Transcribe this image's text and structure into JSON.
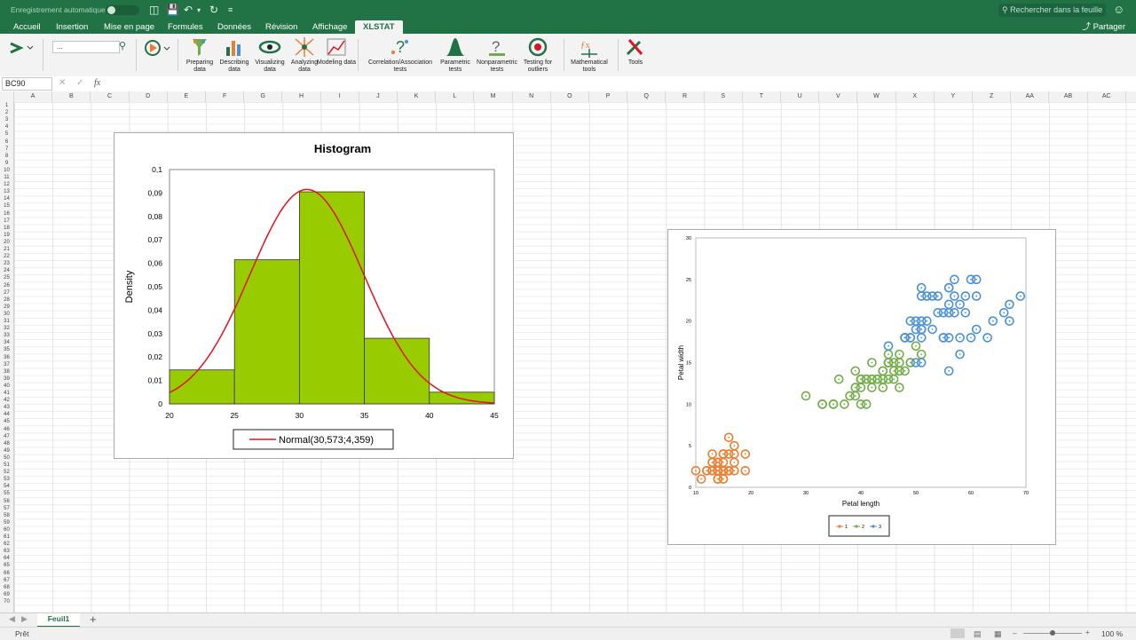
{
  "titlebar": {
    "autosave_label": "Enregistrement automatique",
    "search_placeholder": "Rechercher dans la feuille"
  },
  "tabs": [
    "Accueil",
    "Insertion",
    "Mise en page",
    "Formules",
    "Données",
    "Révision",
    "Affichage",
    "XLSTAT"
  ],
  "active_tab": "XLSTAT",
  "share_label": "Partager",
  "ribbon": {
    "search_value": "...",
    "tools": [
      {
        "label": "Preparing data",
        "icon": "preparing-data-icon"
      },
      {
        "label": "Describing data",
        "icon": "describing-data-icon"
      },
      {
        "label": "Visualizing data",
        "icon": "visualizing-data-icon"
      },
      {
        "label": "Analyzing data",
        "icon": "analyzing-data-icon"
      },
      {
        "label": "Modeling data",
        "icon": "modeling-data-icon"
      },
      {
        "label": "Correlation/Association tests",
        "icon": "correlation-icon"
      },
      {
        "label": "Parametric tests",
        "icon": "parametric-icon"
      },
      {
        "label": "Nonparametric tests",
        "icon": "nonparametric-icon"
      },
      {
        "label": "Testing for outliers",
        "icon": "outliers-icon"
      },
      {
        "label": "Mathematical tools",
        "icon": "math-tools-icon"
      },
      {
        "label": "Tools",
        "icon": "tools-icon"
      }
    ]
  },
  "formula_bar": {
    "name_box": "BC90",
    "fx_label": "fx",
    "value": ""
  },
  "columns": [
    "A",
    "B",
    "C",
    "D",
    "E",
    "F",
    "G",
    "H",
    "I",
    "J",
    "K",
    "L",
    "M",
    "N",
    "O",
    "P",
    "Q",
    "R",
    "S",
    "T",
    "U",
    "V",
    "W",
    "X",
    "Y",
    "Z",
    "AA",
    "AB",
    "AC"
  ],
  "row_count": 71,
  "sheet_tab": "Feuil1",
  "status_text": "Prêt",
  "zoom": "100 %",
  "colors": {
    "excel_green": "#217346",
    "bar_fill": "#99cc00",
    "curve": "#e0141e",
    "series1": "#ed7d31",
    "series2": "#70ad47",
    "series3": "#4a90d9"
  },
  "chart_data": [
    {
      "type": "bar",
      "title": "Histogram",
      "ylabel": "Density",
      "xlabel": "",
      "bins": [
        [
          20,
          25
        ],
        [
          25,
          30
        ],
        [
          30,
          35
        ],
        [
          35,
          40
        ],
        [
          40,
          45
        ]
      ],
      "values": [
        0.0145,
        0.0615,
        0.0905,
        0.028,
        0.005
      ],
      "xticks": [
        "20",
        "25",
        "30",
        "35",
        "40",
        "45"
      ],
      "yticks": [
        "0",
        "0,01",
        "0,02",
        "0,03",
        "0,04",
        "0,05",
        "0,06",
        "0,07",
        "0,08",
        "0,09",
        "0,1"
      ],
      "xlim": [
        20,
        45
      ],
      "ylim": [
        0,
        0.1
      ],
      "overlay": {
        "type": "line",
        "name": "Normal(30,573;4,359)",
        "mean": 30.573,
        "sd": 4.359
      },
      "legend_position": "bottom"
    },
    {
      "type": "scatter",
      "xlabel": "Petal length",
      "ylabel": "Petal width",
      "xlim": [
        10,
        70
      ],
      "ylim": [
        0,
        30
      ],
      "xticks": [
        "10",
        "20",
        "30",
        "40",
        "50",
        "60",
        "70"
      ],
      "yticks": [
        "0",
        "5",
        "10",
        "15",
        "20",
        "25",
        "30"
      ],
      "legend_position": "bottom",
      "series": [
        {
          "name": "1",
          "points": [
            [
              14,
              2
            ],
            [
              14,
              2
            ],
            [
              13,
              2
            ],
            [
              15,
              2
            ],
            [
              14,
              2
            ],
            [
              17,
              4
            ],
            [
              14,
              3
            ],
            [
              15,
              2
            ],
            [
              14,
              2
            ],
            [
              15,
              1
            ],
            [
              15,
              2
            ],
            [
              16,
              2
            ],
            [
              14,
              1
            ],
            [
              11,
              1
            ],
            [
              12,
              2
            ],
            [
              15,
              4
            ],
            [
              13,
              4
            ],
            [
              14,
              3
            ],
            [
              17,
              3
            ],
            [
              15,
              3
            ],
            [
              17,
              2
            ],
            [
              15,
              4
            ],
            [
              10,
              2
            ],
            [
              17,
              5
            ],
            [
              19,
              2
            ],
            [
              16,
              2
            ],
            [
              16,
              4
            ],
            [
              15,
              2
            ],
            [
              14,
              2
            ],
            [
              16,
              2
            ],
            [
              16,
              2
            ],
            [
              15,
              4
            ],
            [
              15,
              1
            ],
            [
              14,
              2
            ],
            [
              15,
              2
            ],
            [
              12,
              2
            ],
            [
              13,
              2
            ],
            [
              14,
              1
            ],
            [
              13,
              2
            ],
            [
              15,
              2
            ],
            [
              13,
              3
            ],
            [
              13,
              3
            ],
            [
              13,
              2
            ],
            [
              16,
              6
            ],
            [
              19,
              4
            ],
            [
              14,
              3
            ],
            [
              16,
              2
            ],
            [
              14,
              2
            ],
            [
              15,
              2
            ],
            [
              14,
              2
            ]
          ]
        },
        {
          "name": "2",
          "points": [
            [
              47,
              14
            ],
            [
              45,
              15
            ],
            [
              49,
              15
            ],
            [
              40,
              13
            ],
            [
              46,
              15
            ],
            [
              45,
              13
            ],
            [
              47,
              16
            ],
            [
              33,
              10
            ],
            [
              46,
              13
            ],
            [
              39,
              14
            ],
            [
              35,
              10
            ],
            [
              42,
              15
            ],
            [
              40,
              10
            ],
            [
              47,
              14
            ],
            [
              36,
              13
            ],
            [
              44,
              14
            ],
            [
              45,
              15
            ],
            [
              41,
              10
            ],
            [
              45,
              15
            ],
            [
              39,
              11
            ],
            [
              48,
              18
            ],
            [
              40,
              13
            ],
            [
              49,
              15
            ],
            [
              47,
              12
            ],
            [
              43,
              13
            ],
            [
              44,
              14
            ],
            [
              48,
              14
            ],
            [
              50,
              17
            ],
            [
              45,
              15
            ],
            [
              35,
              10
            ],
            [
              38,
              11
            ],
            [
              37,
              10
            ],
            [
              39,
              12
            ],
            [
              51,
              16
            ],
            [
              45,
              15
            ],
            [
              45,
              16
            ],
            [
              47,
              15
            ],
            [
              44,
              13
            ],
            [
              41,
              13
            ],
            [
              40,
              13
            ],
            [
              44,
              12
            ],
            [
              46,
              14
            ],
            [
              40,
              12
            ],
            [
              33,
              10
            ],
            [
              42,
              13
            ],
            [
              42,
              12
            ],
            [
              42,
              13
            ],
            [
              43,
              13
            ],
            [
              30,
              11
            ],
            [
              41,
              13
            ]
          ]
        },
        {
          "name": "3",
          "points": [
            [
              60,
              25
            ],
            [
              51,
              19
            ],
            [
              59,
              21
            ],
            [
              56,
              18
            ],
            [
              58,
              22
            ],
            [
              66,
              21
            ],
            [
              45,
              17
            ],
            [
              63,
              18
            ],
            [
              58,
              18
            ],
            [
              61,
              25
            ],
            [
              51,
              20
            ],
            [
              53,
              19
            ],
            [
              55,
              21
            ],
            [
              50,
              20
            ],
            [
              51,
              24
            ],
            [
              53,
              23
            ],
            [
              55,
              18
            ],
            [
              67,
              22
            ],
            [
              69,
              23
            ],
            [
              50,
              15
            ],
            [
              57,
              23
            ],
            [
              49,
              20
            ],
            [
              67,
              20
            ],
            [
              49,
              18
            ],
            [
              57,
              21
            ],
            [
              60,
              18
            ],
            [
              48,
              18
            ],
            [
              49,
              18
            ],
            [
              56,
              21
            ],
            [
              58,
              16
            ],
            [
              61,
              19
            ],
            [
              64,
              20
            ],
            [
              56,
              22
            ],
            [
              51,
              15
            ],
            [
              56,
              14
            ],
            [
              61,
              23
            ],
            [
              56,
              24
            ],
            [
              55,
              18
            ],
            [
              48,
              18
            ],
            [
              54,
              21
            ],
            [
              56,
              24
            ],
            [
              51,
              23
            ],
            [
              51,
              19
            ],
            [
              59,
              23
            ],
            [
              57,
              25
            ],
            [
              52,
              23
            ],
            [
              50,
              19
            ],
            [
              52,
              20
            ],
            [
              54,
              23
            ],
            [
              51,
              18
            ]
          ]
        }
      ]
    }
  ]
}
